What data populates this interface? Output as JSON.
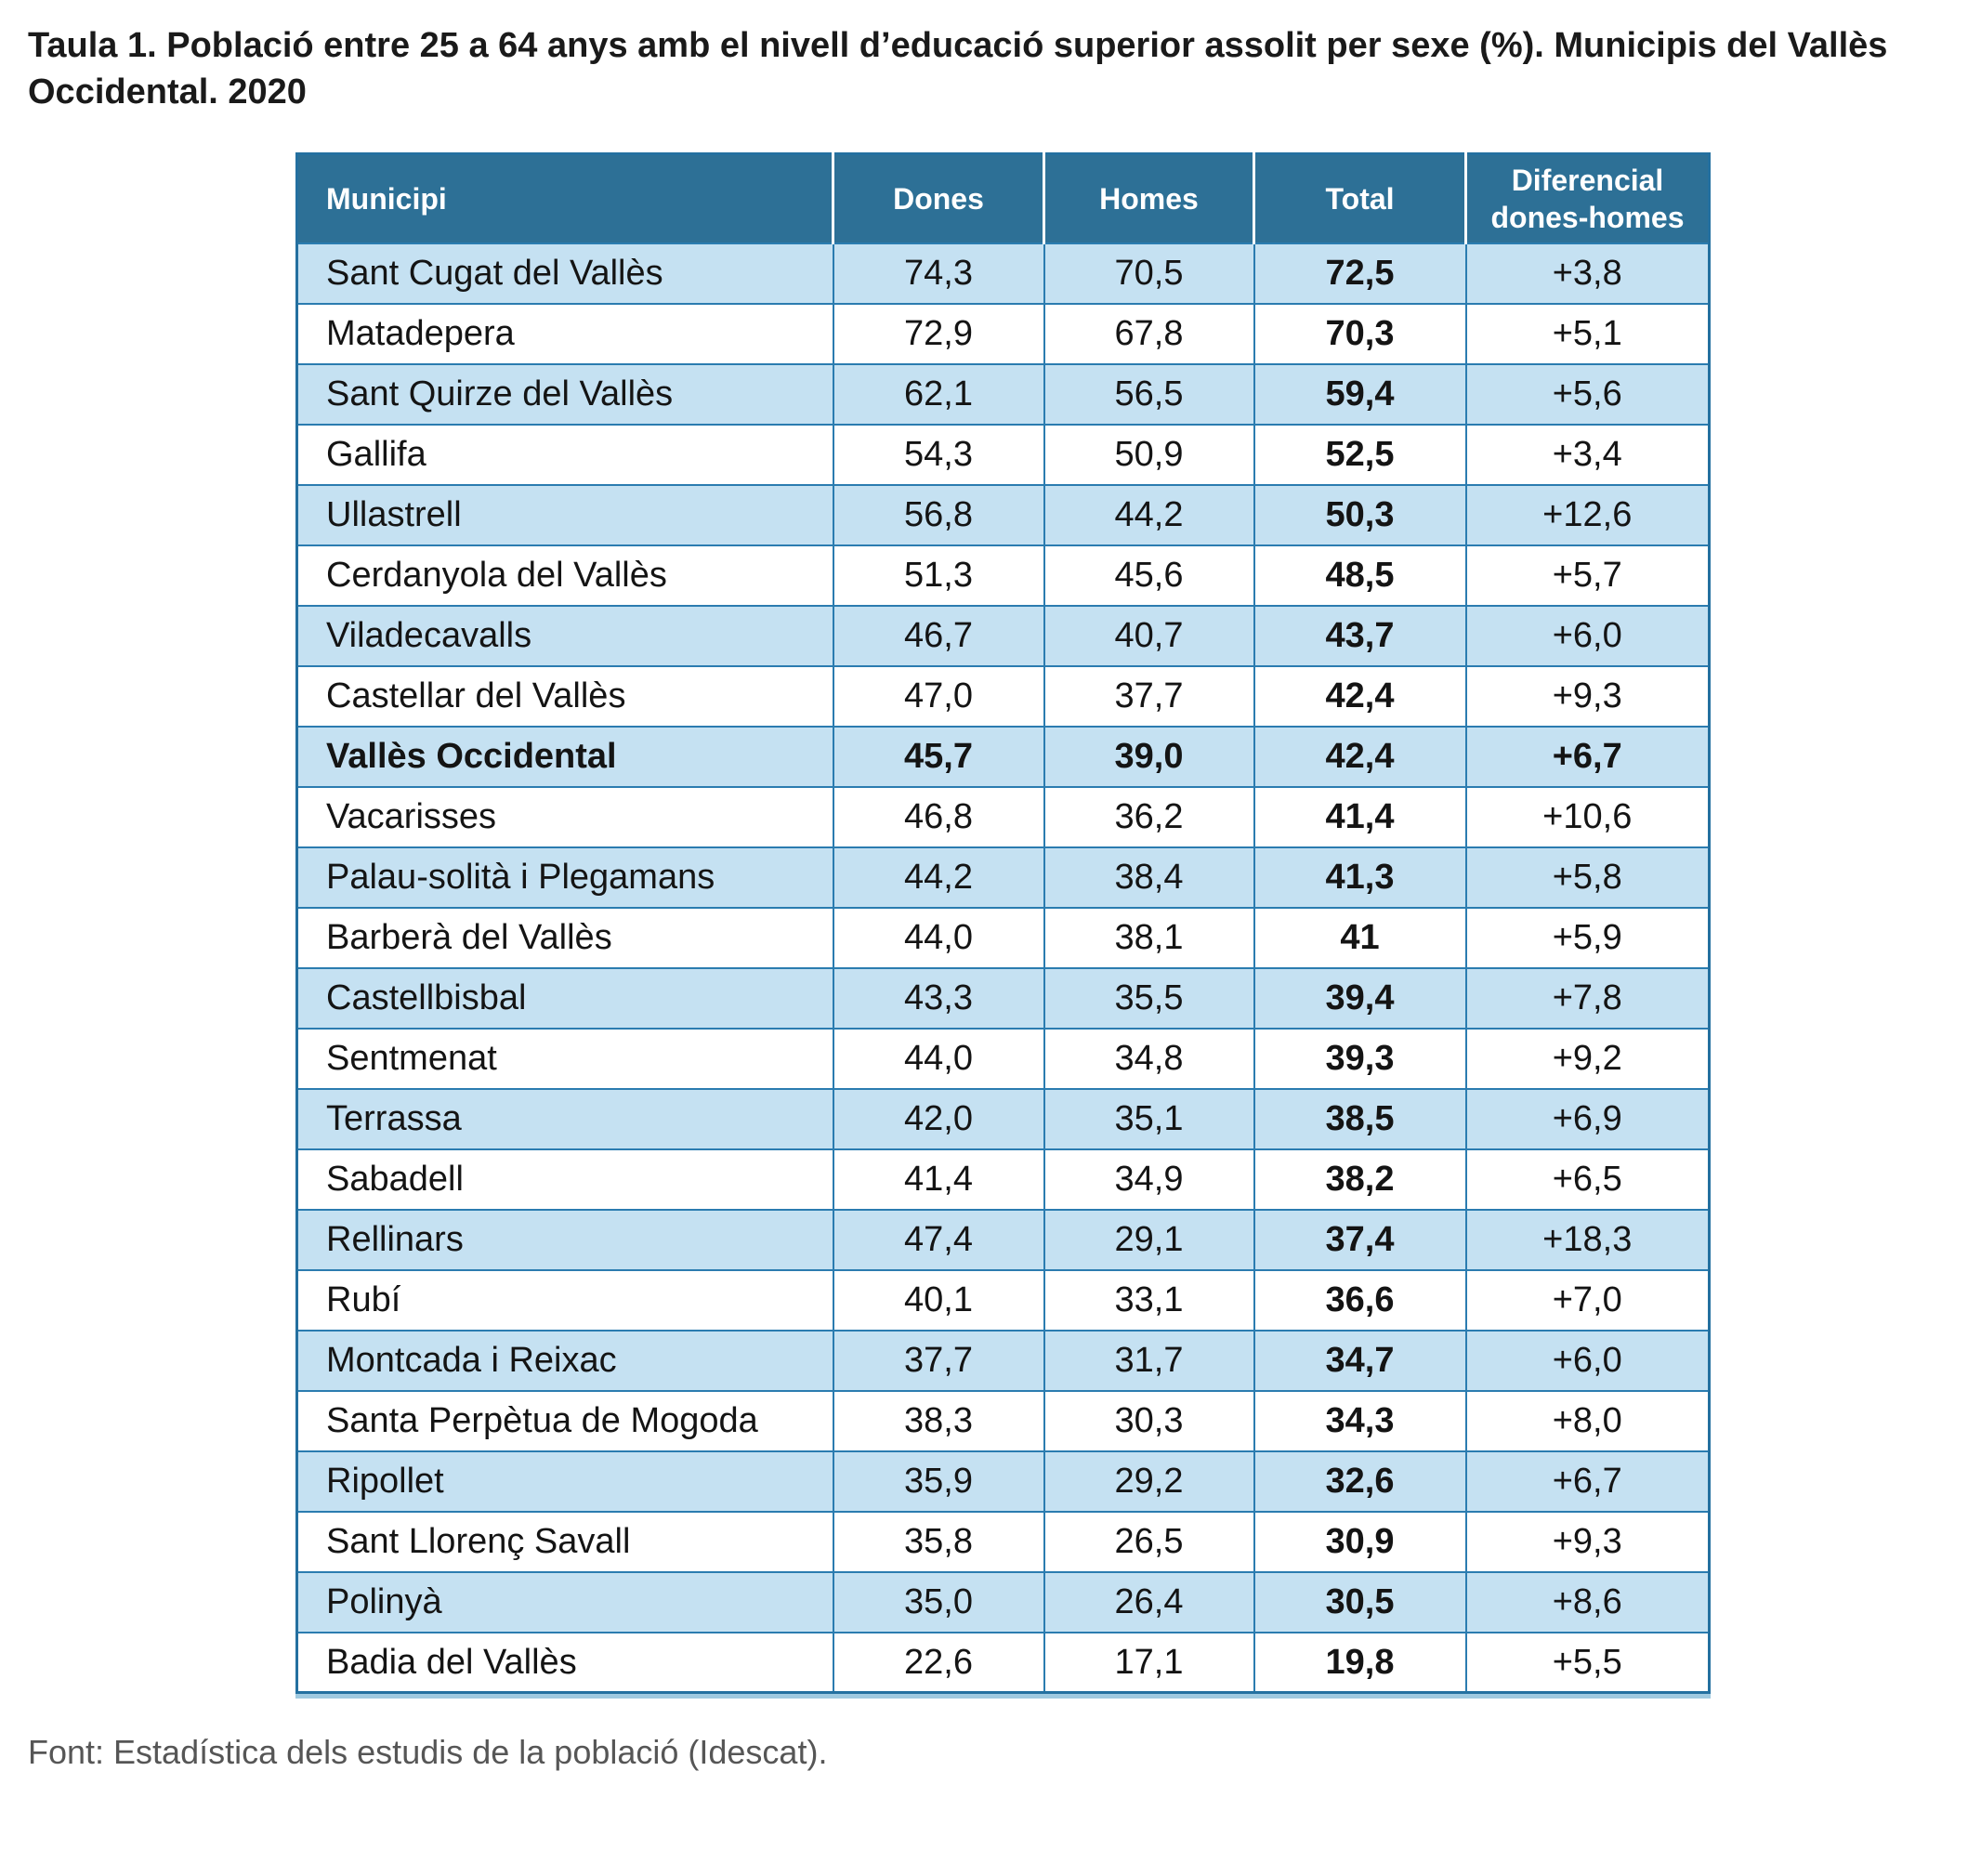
{
  "title": "Taula 1. Població entre 25 a 64 anys amb el nivell d’educació superior assolit per sexe (%). Municipis del Vallès Occidental. 2020",
  "source": "Font: Estadística dels estudis de la població (Idescat).",
  "colors": {
    "header_background": "#2D7096",
    "header_text": "#FFFFFF",
    "row_alternate_background": "#C5E1F2",
    "row_background": "#FFFFFF",
    "cell_border": "#2B7CB0",
    "outer_border": "#2470A0",
    "outer_shadow": "#9FC9E0",
    "title_text": "#1A1A1A",
    "source_text": "#565656"
  },
  "table": {
    "columns": [
      "Municipi",
      "Dones",
      "Homes",
      "Total",
      "Diferencial dones-homes"
    ],
    "rows": [
      {
        "municipi": "Sant Cugat del Vallès",
        "dones": "74,3",
        "homes": "70,5",
        "total": "72,5",
        "dif": "+3,8",
        "emphasis": false
      },
      {
        "municipi": "Matadepera",
        "dones": "72,9",
        "homes": "67,8",
        "total": "70,3",
        "dif": "+5,1",
        "emphasis": false
      },
      {
        "municipi": "Sant Quirze del Vallès",
        "dones": "62,1",
        "homes": "56,5",
        "total": "59,4",
        "dif": "+5,6",
        "emphasis": false
      },
      {
        "municipi": "Gallifa",
        "dones": "54,3",
        "homes": "50,9",
        "total": "52,5",
        "dif": "+3,4",
        "emphasis": false
      },
      {
        "municipi": "Ullastrell",
        "dones": "56,8",
        "homes": "44,2",
        "total": "50,3",
        "dif": "+12,6",
        "emphasis": false
      },
      {
        "municipi": "Cerdanyola del Vallès",
        "dones": "51,3",
        "homes": "45,6",
        "total": "48,5",
        "dif": "+5,7",
        "emphasis": false
      },
      {
        "municipi": "Viladecavalls",
        "dones": "46,7",
        "homes": "40,7",
        "total": "43,7",
        "dif": "+6,0",
        "emphasis": false
      },
      {
        "municipi": "Castellar del Vallès",
        "dones": "47,0",
        "homes": "37,7",
        "total": "42,4",
        "dif": "+9,3",
        "emphasis": false
      },
      {
        "municipi": "Vallès Occidental",
        "dones": "45,7",
        "homes": "39,0",
        "total": "42,4",
        "dif": "+6,7",
        "emphasis": true
      },
      {
        "municipi": "Vacarisses",
        "dones": "46,8",
        "homes": "36,2",
        "total": "41,4",
        "dif": "+10,6",
        "emphasis": false
      },
      {
        "municipi": "Palau-solità i Plegamans",
        "dones": "44,2",
        "homes": "38,4",
        "total": "41,3",
        "dif": "+5,8",
        "emphasis": false
      },
      {
        "municipi": "Barberà del Vallès",
        "dones": "44,0",
        "homes": "38,1",
        "total": "41",
        "dif": "+5,9",
        "emphasis": false
      },
      {
        "municipi": "Castellbisbal",
        "dones": "43,3",
        "homes": "35,5",
        "total": "39,4",
        "dif": "+7,8",
        "emphasis": false
      },
      {
        "municipi": "Sentmenat",
        "dones": "44,0",
        "homes": "34,8",
        "total": "39,3",
        "dif": "+9,2",
        "emphasis": false
      },
      {
        "municipi": "Terrassa",
        "dones": "42,0",
        "homes": "35,1",
        "total": "38,5",
        "dif": "+6,9",
        "emphasis": false
      },
      {
        "municipi": "Sabadell",
        "dones": "41,4",
        "homes": "34,9",
        "total": "38,2",
        "dif": "+6,5",
        "emphasis": false
      },
      {
        "municipi": "Rellinars",
        "dones": "47,4",
        "homes": "29,1",
        "total": "37,4",
        "dif": "+18,3",
        "emphasis": false
      },
      {
        "municipi": "Rubí",
        "dones": "40,1",
        "homes": "33,1",
        "total": "36,6",
        "dif": "+7,0",
        "emphasis": false
      },
      {
        "municipi": "Montcada i Reixac",
        "dones": "37,7",
        "homes": "31,7",
        "total": "34,7",
        "dif": "+6,0",
        "emphasis": false
      },
      {
        "municipi": "Santa Perpètua de Mogoda",
        "dones": "38,3",
        "homes": "30,3",
        "total": "34,3",
        "dif": "+8,0",
        "emphasis": false
      },
      {
        "municipi": "Ripollet",
        "dones": "35,9",
        "homes": "29,2",
        "total": "32,6",
        "dif": "+6,7",
        "emphasis": false
      },
      {
        "municipi": "Sant Llorenç Savall",
        "dones": "35,8",
        "homes": "26,5",
        "total": "30,9",
        "dif": "+9,3",
        "emphasis": false
      },
      {
        "municipi": "Polinyà",
        "dones": "35,0",
        "homes": "26,4",
        "total": "30,5",
        "dif": "+8,6",
        "emphasis": false
      },
      {
        "municipi": "Badia del Vallès",
        "dones": "22,6",
        "homes": "17,1",
        "total": "19,8",
        "dif": "+5,5",
        "emphasis": false
      }
    ]
  },
  "chart_data": {
    "type": "table",
    "title": "Taula 1. Població entre 25 a 64 anys amb el nivell d’educació superior assolit per sexe (%). Municipis del Vallès Occidental. 2020",
    "columns": [
      "Municipi",
      "Dones",
      "Homes",
      "Total",
      "Diferencial dones-homes"
    ],
    "rows": [
      [
        "Sant Cugat del Vallès",
        74.3,
        70.5,
        72.5,
        3.8
      ],
      [
        "Matadepera",
        72.9,
        67.8,
        70.3,
        5.1
      ],
      [
        "Sant Quirze del Vallès",
        62.1,
        56.5,
        59.4,
        5.6
      ],
      [
        "Gallifa",
        54.3,
        50.9,
        52.5,
        3.4
      ],
      [
        "Ullastrell",
        56.8,
        44.2,
        50.3,
        12.6
      ],
      [
        "Cerdanyola del Vallès",
        51.3,
        45.6,
        48.5,
        5.7
      ],
      [
        "Viladecavalls",
        46.7,
        40.7,
        43.7,
        6.0
      ],
      [
        "Castellar del Vallès",
        47.0,
        37.7,
        42.4,
        9.3
      ],
      [
        "Vallès Occidental",
        45.7,
        39.0,
        42.4,
        6.7
      ],
      [
        "Vacarisses",
        46.8,
        36.2,
        41.4,
        10.6
      ],
      [
        "Palau-solità i Plegamans",
        44.2,
        38.4,
        41.3,
        5.8
      ],
      [
        "Barberà del Vallès",
        44.0,
        38.1,
        41,
        5.9
      ],
      [
        "Castellbisbal",
        43.3,
        35.5,
        39.4,
        7.8
      ],
      [
        "Sentmenat",
        44.0,
        34.8,
        39.3,
        9.2
      ],
      [
        "Terrassa",
        42.0,
        35.1,
        38.5,
        6.9
      ],
      [
        "Sabadell",
        41.4,
        34.9,
        38.2,
        6.5
      ],
      [
        "Rellinars",
        47.4,
        29.1,
        37.4,
        18.3
      ],
      [
        "Rubí",
        40.1,
        33.1,
        36.6,
        7.0
      ],
      [
        "Montcada i Reixac",
        37.7,
        31.7,
        34.7,
        6.0
      ],
      [
        "Santa Perpètua de Mogoda",
        38.3,
        30.3,
        34.3,
        8.0
      ],
      [
        "Ripollet",
        35.9,
        29.2,
        32.6,
        6.7
      ],
      [
        "Sant Llorenç Savall",
        35.8,
        26.5,
        30.9,
        9.3
      ],
      [
        "Polinyà",
        35.0,
        26.4,
        30.5,
        8.6
      ],
      [
        "Badia del Vallès",
        22.6,
        17.1,
        19.8,
        5.5
      ]
    ],
    "source": "Font: Estadística dels estudis de la població (Idescat)."
  }
}
